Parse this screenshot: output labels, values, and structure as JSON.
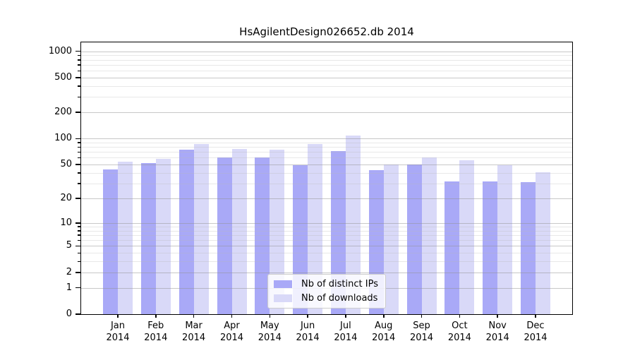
{
  "chart_data": {
    "type": "bar",
    "title": "HsAgilentDesign026652.db 2014",
    "scale": "symlog(log1p)",
    "categories": [
      "Jan",
      "Feb",
      "Mar",
      "Apr",
      "May",
      "Jun",
      "Jul",
      "Aug",
      "Sep",
      "Oct",
      "Nov",
      "Dec"
    ],
    "year": "2014",
    "series": [
      {
        "name": "Nb of distinct IPs",
        "color": "#a9a9f7",
        "values": [
          44,
          52,
          74,
          61,
          61,
          49,
          72,
          43,
          50,
          32,
          32,
          31
        ]
      },
      {
        "name": "Nb of downloads",
        "color": "#d9d9f8",
        "values": [
          54,
          58,
          87,
          76,
          75,
          86,
          108,
          50,
          61,
          56,
          49,
          41
        ]
      }
    ],
    "y_major_ticks": [
      0,
      1,
      2,
      5,
      10,
      20,
      50,
      100,
      200,
      500,
      1000
    ],
    "y_minor_ticks": [
      3,
      4,
      6,
      7,
      8,
      9,
      30,
      40,
      60,
      70,
      80,
      90,
      300,
      400,
      600,
      700,
      800,
      900
    ],
    "ylim": [
      0,
      1268
    ],
    "grid": "major+minor, drawn over bars",
    "legend_position": "lower center",
    "xlabel": "",
    "ylabel": ""
  },
  "colors": {
    "background": "#ffffff",
    "spine": "#000000",
    "grid_major": "#cacaca",
    "grid_minor": "#e9e9e9"
  }
}
